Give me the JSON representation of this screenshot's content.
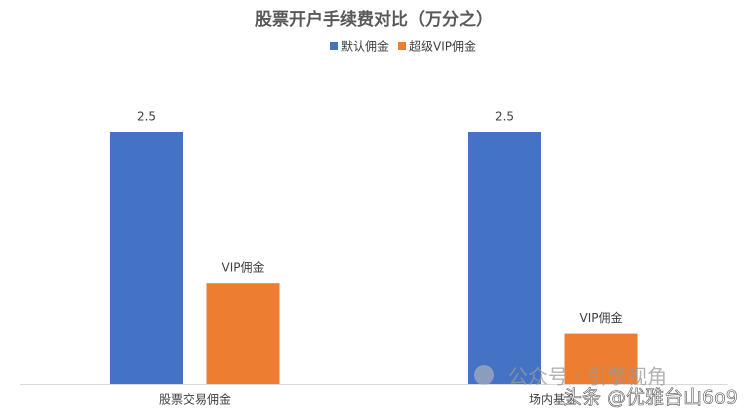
{
  "chart_data": {
    "type": "bar",
    "title": "股票开户手续费对比（万分之）",
    "categories": [
      "股票交易佣金",
      "场内基金"
    ],
    "series": [
      {
        "name": "默认佣金",
        "color": "#4472c4",
        "values": [
          2.5,
          2.5
        ],
        "value_labels": [
          "2.5",
          "2.5"
        ]
      },
      {
        "name": "超级VIP佣金",
        "color": "#ed7d31",
        "values": [
          1.0,
          0.5
        ],
        "value_labels": [
          "VIP佣金",
          "VIP佣金"
        ]
      }
    ],
    "legend": "top"
  },
  "watermarks": [
    "公众号 · 引擎视角",
    "头条 @优雅台山6o9"
  ]
}
